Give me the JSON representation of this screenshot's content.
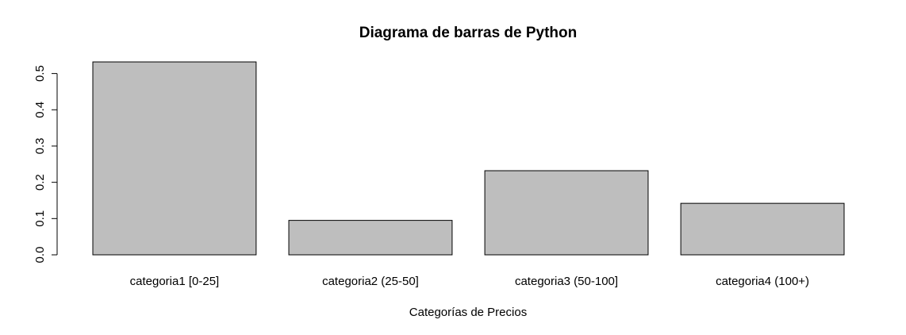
{
  "chart_data": {
    "type": "bar",
    "title": "Diagrama de barras de Python",
    "xlabel": "Categorías de Precios",
    "ylabel": "",
    "categories": [
      "categoria1 [0-25]",
      "categoria2 (25-50]",
      "categoria3 (50-100]",
      "categoria4 (100+)"
    ],
    "values": [
      0.532,
      0.095,
      0.232,
      0.142
    ],
    "ylim": [
      0,
      0.532
    ],
    "yticks": [
      0.0,
      0.1,
      0.2,
      0.3,
      0.4,
      0.5
    ],
    "ytick_labels": [
      "0.0",
      "0.1",
      "0.2",
      "0.3",
      "0.4",
      "0.5"
    ],
    "grid": false,
    "legend": "none",
    "colors": {
      "bar_fill": "#bebebe",
      "bar_stroke": "#000000",
      "axis": "#000000",
      "text": "#000000",
      "background": "#ffffff"
    }
  }
}
